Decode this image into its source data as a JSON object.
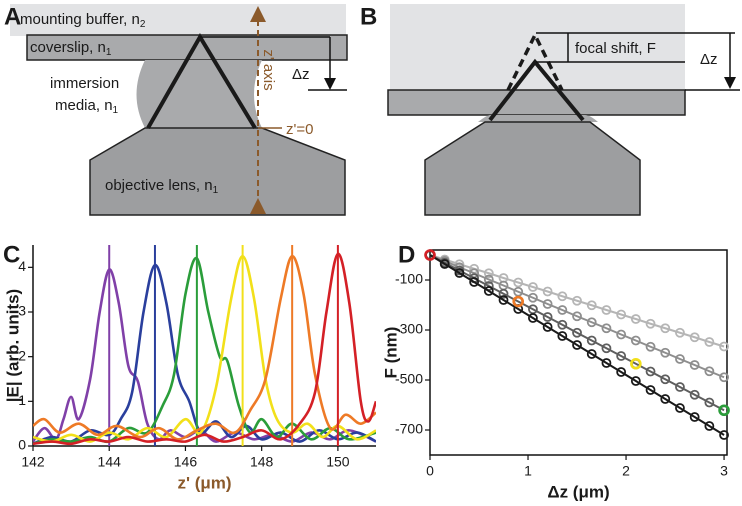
{
  "panel_labels": [
    "A",
    "B",
    "C",
    "D"
  ],
  "diagram_a": {
    "mounting_buffer": {
      "text": "mounting buffer, n",
      "sub": "2"
    },
    "coverslip": {
      "text": "coverslip, n",
      "sub": "1"
    },
    "immersion_media": {
      "lines": [
        "immersion",
        "media, n"
      ],
      "sub": "1"
    },
    "objective_lens": {
      "text": "objective lens, n",
      "sub": "1"
    },
    "delta_z": "Δz",
    "axis_label": "z' axis",
    "origin_label": "z'=0"
  },
  "diagram_b": {
    "focal_shift": "focal shift, F",
    "delta_z": "Δz"
  },
  "chart_data": [
    {
      "type": "line",
      "xlabel": "z' (μm)",
      "ylabel": "|E| (arb. units)",
      "xlim": [
        142,
        151
      ],
      "ylim": [
        0,
        4.5
      ],
      "xticks": [
        142,
        144,
        146,
        148,
        150
      ],
      "yticks": [
        0,
        1,
        2,
        3,
        4
      ],
      "series": [
        {
          "color": "#8040a8",
          "x": [
            142,
            142.3,
            142.6,
            142.8,
            143,
            143.2,
            143.5,
            143.75,
            144,
            144.25,
            144.5,
            144.75,
            145,
            145.3,
            145.6,
            146,
            146.4,
            146.8,
            147.3,
            147.8,
            148.3,
            148.8,
            149.3,
            149.8,
            150.3,
            151
          ],
          "values": [
            0.1,
            0.4,
            0.15,
            0.6,
            1.1,
            0.6,
            1.5,
            3.0,
            3.95,
            3.2,
            1.8,
            1.45,
            0.5,
            0.15,
            0.35,
            0.2,
            0.35,
            0.1,
            0.3,
            0.15,
            0.25,
            0.1,
            0.3,
            0.15,
            0.35,
            0.1
          ]
        },
        {
          "color": "#2a3f9d",
          "x": [
            142,
            142.5,
            143,
            143.5,
            144,
            144.3,
            144.6,
            144.9,
            145.2,
            145.5,
            145.8,
            146.1,
            146.4,
            146.8,
            147.2,
            147.6,
            148,
            148.5,
            149,
            149.5,
            150,
            150.5,
            151
          ],
          "values": [
            0.05,
            0.2,
            0.1,
            0.35,
            0.25,
            0.6,
            1.2,
            3.0,
            4.05,
            3.2,
            1.6,
            1.0,
            0.3,
            0.55,
            0.2,
            0.45,
            0.15,
            0.3,
            0.1,
            0.35,
            0.15,
            0.3,
            0.1
          ]
        },
        {
          "color": "#2a9d3a",
          "x": [
            142,
            142.5,
            143,
            143.5,
            144,
            144.5,
            145,
            145.4,
            145.7,
            146,
            146.3,
            146.6,
            146.9,
            147.1,
            147.4,
            147.7,
            148,
            148.4,
            148.8,
            149.3,
            149.8,
            150.3,
            151
          ],
          "values": [
            0.05,
            0.15,
            0.1,
            0.2,
            0.1,
            0.4,
            0.3,
            0.9,
            1.6,
            3.4,
            4.2,
            3.0,
            2.0,
            1.9,
            0.9,
            0.3,
            0.6,
            0.2,
            0.5,
            0.15,
            0.4,
            0.15,
            0.3
          ]
        },
        {
          "color": "#f2e01a",
          "x": [
            142,
            142.5,
            143,
            143.5,
            144,
            144.5,
            145,
            145.5,
            146,
            146.4,
            146.8,
            147.2,
            147.5,
            147.8,
            148.1,
            148.4,
            148.8,
            149.2,
            149.6,
            150,
            150.5,
            151
          ],
          "values": [
            0.2,
            0.1,
            0.25,
            0.1,
            0.3,
            0.15,
            0.4,
            0.2,
            0.6,
            0.3,
            1.3,
            3.3,
            4.25,
            3.3,
            1.5,
            0.6,
            0.3,
            0.5,
            0.2,
            0.45,
            0.15,
            0.35
          ]
        },
        {
          "color": "#ee7a26",
          "x": [
            142,
            142.3,
            142.7,
            143.2,
            143.7,
            144.2,
            144.8,
            145.3,
            145.8,
            146.3,
            146.8,
            147.3,
            147.7,
            148.1,
            148.5,
            148.8,
            149.1,
            149.4,
            149.8,
            150.2,
            150.6,
            151
          ],
          "values": [
            0.45,
            0.6,
            0.3,
            0.5,
            0.25,
            0.45,
            0.2,
            0.4,
            0.15,
            0.35,
            0.5,
            0.3,
            0.8,
            1.5,
            3.3,
            4.25,
            3.4,
            1.6,
            0.4,
            0.7,
            0.5,
            0.75
          ]
        },
        {
          "color": "#d42026",
          "x": [
            142,
            142.5,
            143,
            143.5,
            144,
            144.5,
            145,
            145.5,
            146,
            146.5,
            147,
            147.5,
            148,
            148.5,
            149,
            149.4,
            149.7,
            150,
            150.3,
            150.6,
            150.8,
            151
          ],
          "values": [
            0.05,
            0.1,
            0.05,
            0.15,
            0.1,
            0.2,
            0.1,
            0.15,
            0.1,
            0.25,
            0.1,
            0.2,
            0.35,
            0.15,
            0.5,
            1.2,
            3.0,
            4.3,
            3.2,
            1.0,
            0.55,
            1.0
          ]
        }
      ]
    },
    {
      "type": "line",
      "xlabel": "Δz (μm)",
      "ylabel": "F (nm)",
      "xlim": [
        0,
        3.03
      ],
      "ylim": [
        -800,
        20
      ],
      "xticks": [
        0,
        1,
        2,
        3
      ],
      "yticks": [
        -100,
        -300,
        -500,
        -700
      ],
      "markers": true,
      "x": [
        0,
        0.15,
        0.3,
        0.45,
        0.6,
        0.75,
        0.9,
        1.05,
        1.2,
        1.35,
        1.5,
        1.65,
        1.8,
        1.95,
        2.1,
        2.25,
        2.4,
        2.55,
        2.7,
        2.85,
        3
      ],
      "series": [
        {
          "color": "#b5b5b5",
          "values": [
            0,
            -18,
            -37,
            -55,
            -73,
            -92,
            -110,
            -128,
            -146,
            -165,
            -183,
            -201,
            -220,
            -238,
            -256,
            -275,
            -293,
            -311,
            -329,
            -348,
            -366
          ]
        },
        {
          "color": "#8e8e8e",
          "values": [
            0,
            -24,
            -49,
            -73,
            -98,
            -122,
            -147,
            -171,
            -196,
            -220,
            -245,
            -269,
            -293,
            -318,
            -342,
            -367,
            -391,
            -416,
            -440,
            -465,
            -489
          ]
        },
        {
          "color": "#5e5e5e",
          "values": [
            0,
            -31,
            -62,
            -93,
            -124,
            -155,
            -186,
            -217,
            -248,
            -279,
            -311,
            -342,
            -373,
            -404,
            -435,
            -466,
            -497,
            -528,
            -559,
            -590,
            -621
          ]
        },
        {
          "color": "#1a1a1a",
          "values": [
            0,
            -36,
            -72,
            -108,
            -144,
            -180,
            -216,
            -252,
            -288,
            -324,
            -360,
            -396,
            -432,
            -468,
            -504,
            -540,
            -576,
            -612,
            -648,
            -684,
            -720
          ]
        }
      ],
      "highlights": {
        "x": [
          0,
          0.9,
          2.1,
          3
        ],
        "values": [
          0,
          -186,
          -435,
          -621
        ],
        "colors": [
          "#d42026",
          "#ee7a26",
          "#f2e01a",
          "#2a9d3a"
        ]
      }
    }
  ]
}
